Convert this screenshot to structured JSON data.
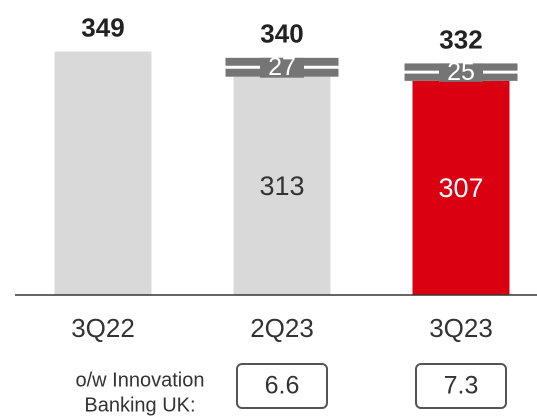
{
  "chart_data": {
    "type": "stacked_bar",
    "categories": [
      "3Q22",
      "2Q23",
      "3Q23"
    ],
    "series": [
      {
        "values": [
          349,
          313,
          307
        ],
        "value_labels": [
          null,
          "313",
          "307"
        ],
        "colors": [
          "#d9d9d9",
          "#d9d9d9",
          "#db0011"
        ]
      },
      {
        "values": [
          null,
          27,
          25
        ],
        "color": "#757575"
      }
    ],
    "total_labels": [
      349,
      340,
      332
    ],
    "ylim": [
      0,
      400
    ],
    "note": {
      "label_lines": [
        "o/w Innovation",
        "Banking UK:"
      ],
      "values": [
        null,
        6.6,
        7.3
      ]
    }
  }
}
